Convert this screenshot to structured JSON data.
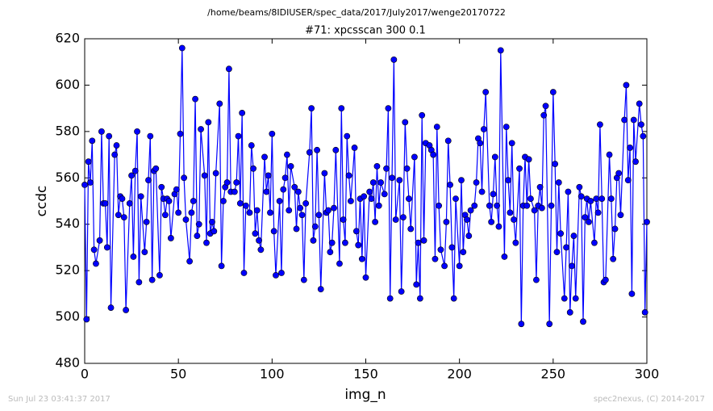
{
  "chart_data": {
    "type": "line",
    "header": "/home/beams/8IDIUSER/spec_data/2017/July2017/wenge20170722",
    "title": "#71: xpcsscan 300 0.1",
    "x_label": "img_n",
    "y_label": "ccdc",
    "footer_left": "Sun Jul 23 03:41:37 2017",
    "footer_right": "spec2nexus, (C) 2014-2017",
    "xlim": [
      0,
      300
    ],
    "xticks": [
      0,
      50,
      100,
      150,
      200,
      250,
      300
    ],
    "ylim": [
      480,
      620
    ],
    "yticks": [
      480,
      500,
      520,
      540,
      560,
      580,
      600,
      620
    ],
    "x": [
      0,
      1,
      2,
      3,
      4,
      5,
      6,
      8,
      9,
      10,
      11,
      12,
      13,
      14,
      16,
      17,
      18,
      19,
      20,
      21,
      22,
      24,
      25,
      26,
      27,
      28,
      29,
      30,
      32,
      33,
      34,
      35,
      36,
      37,
      38,
      40,
      41,
      42,
      43,
      44,
      45,
      46,
      48,
      49,
      50,
      51,
      52,
      53,
      54,
      56,
      57,
      58,
      59,
      60,
      61,
      62,
      64,
      65,
      66,
      67,
      68,
      69,
      70,
      72,
      73,
      74,
      75,
      76,
      77,
      78,
      80,
      81,
      82,
      83,
      84,
      85,
      86,
      88,
      89,
      90,
      91,
      92,
      93,
      94,
      96,
      97,
      98,
      99,
      100,
      101,
      102,
      104,
      105,
      106,
      107,
      108,
      109,
      110,
      112,
      113,
      114,
      115,
      116,
      117,
      118,
      120,
      121,
      122,
      123,
      124,
      125,
      126,
      128,
      129,
      130,
      131,
      132,
      133,
      134,
      136,
      137,
      138,
      139,
      140,
      141,
      142,
      144,
      145,
      146,
      147,
      148,
      149,
      150,
      152,
      153,
      154,
      155,
      156,
      157,
      158,
      160,
      161,
      162,
      163,
      164,
      165,
      166,
      168,
      169,
      170,
      171,
      172,
      173,
      174,
      176,
      177,
      178,
      179,
      180,
      181,
      182,
      184,
      185,
      186,
      187,
      188,
      189,
      190,
      192,
      193,
      194,
      195,
      196,
      197,
      198,
      200,
      201,
      202,
      203,
      204,
      205,
      206,
      208,
      209,
      210,
      211,
      212,
      213,
      214,
      216,
      217,
      218,
      219,
      220,
      221,
      222,
      224,
      225,
      226,
      227,
      228,
      229,
      230,
      232,
      233,
      234,
      235,
      236,
      237,
      238,
      240,
      241,
      242,
      243,
      244,
      245,
      246,
      248,
      249,
      250,
      251,
      252,
      253,
      254,
      256,
      257,
      258,
      259,
      260,
      261,
      262,
      264,
      265,
      266,
      267,
      268,
      269,
      270,
      272,
      273,
      274,
      275,
      276,
      277,
      278,
      280,
      281,
      282,
      283,
      284,
      285,
      286,
      288,
      289,
      290,
      291,
      292,
      293,
      294,
      296,
      297,
      298,
      299,
      300
    ],
    "series": [
      {
        "name": "ccdc",
        "color": "#0000ff",
        "values": [
          557,
          499,
          567,
          558,
          576,
          529,
          523,
          533,
          580,
          549,
          549,
          530,
          578,
          504,
          570,
          574,
          544,
          552,
          551,
          543,
          503,
          549,
          561,
          526,
          563,
          580,
          515,
          552,
          528,
          541,
          559,
          578,
          516,
          563,
          564,
          518,
          556,
          551,
          544,
          551,
          550,
          534,
          553,
          555,
          545,
          579,
          616,
          560,
          542,
          524,
          545,
          550,
          594,
          535,
          540,
          581,
          561,
          532,
          584,
          536,
          541,
          537,
          562,
          592,
          522,
          550,
          556,
          558,
          607,
          554,
          554,
          558,
          578,
          549,
          588,
          519,
          548,
          545,
          574,
          564,
          536,
          546,
          533,
          529,
          569,
          554,
          561,
          545,
          579,
          537,
          518,
          550,
          519,
          555,
          560,
          570,
          546,
          565,
          556,
          538,
          554,
          547,
          544,
          516,
          549,
          571,
          590,
          533,
          539,
          572,
          544,
          512,
          562,
          545,
          546,
          528,
          532,
          547,
          572,
          523,
          590,
          542,
          532,
          578,
          561,
          550,
          573,
          537,
          531,
          551,
          525,
          552,
          517,
          554,
          551,
          558,
          541,
          565,
          548,
          558,
          553,
          564,
          590,
          508,
          560,
          611,
          542,
          559,
          511,
          543,
          584,
          564,
          551,
          538,
          569,
          514,
          532,
          508,
          587,
          533,
          575,
          574,
          572,
          570,
          525,
          582,
          548,
          529,
          522,
          541,
          576,
          557,
          530,
          508,
          551,
          522,
          559,
          528,
          544,
          542,
          535,
          546,
          548,
          558,
          577,
          575,
          554,
          581,
          597,
          548,
          541,
          553,
          569,
          548,
          539,
          615,
          526,
          582,
          559,
          545,
          575,
          542,
          532,
          564,
          497,
          548,
          569,
          548,
          568,
          551,
          546,
          516,
          548,
          556,
          547,
          587,
          591,
          497,
          548,
          597,
          566,
          528,
          558,
          536,
          508,
          530,
          554,
          502,
          522,
          535,
          508,
          556,
          552,
          498,
          543,
          551,
          541,
          550,
          532,
          551,
          545,
          583,
          551,
          515,
          516,
          570,
          551,
          525,
          538,
          560,
          562,
          544,
          585,
          600,
          559,
          573,
          510,
          585,
          567,
          592,
          583,
          578,
          502,
          541
        ]
      }
    ]
  }
}
